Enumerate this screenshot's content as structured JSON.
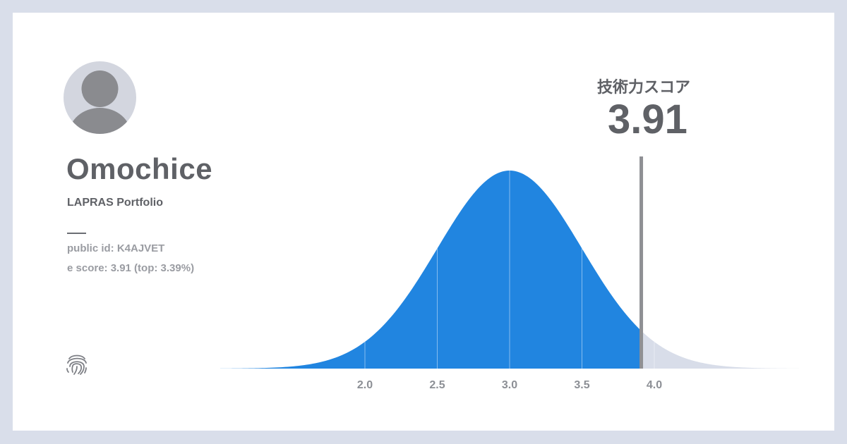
{
  "profile": {
    "name": "Omochice",
    "subtitle": "LAPRAS Portfolio",
    "public_id_line": "public id: K4AJVET",
    "score_line": "e score: 3.91 (top: 3.39%)",
    "avatar_icon": "user-avatar-icon",
    "fingerprint_icon": "fingerprint-icon"
  },
  "score_panel": {
    "label": "技術力スコア",
    "value": "3.91"
  },
  "colors": {
    "background": "#d9deea",
    "card": "#ffffff",
    "fill_below": "#2185e0",
    "fill_above": "#d8dde9",
    "marker": "#8f9094",
    "text_dark": "#5f6166",
    "text_muted": "#9a9ca2"
  },
  "chart_data": {
    "type": "area",
    "distribution": "normal",
    "mean": 3.0,
    "sd": 0.5,
    "xlim": [
      1.0,
      5.0
    ],
    "ticks": [
      2.0,
      2.5,
      3.0,
      3.5,
      4.0
    ],
    "tick_labels": [
      "2.0",
      "2.5",
      "3.0",
      "3.5",
      "4.0"
    ],
    "marker_value": 3.91,
    "grid": "vertical lines at ticks",
    "title": "",
    "xlabel": "",
    "ylabel": ""
  }
}
